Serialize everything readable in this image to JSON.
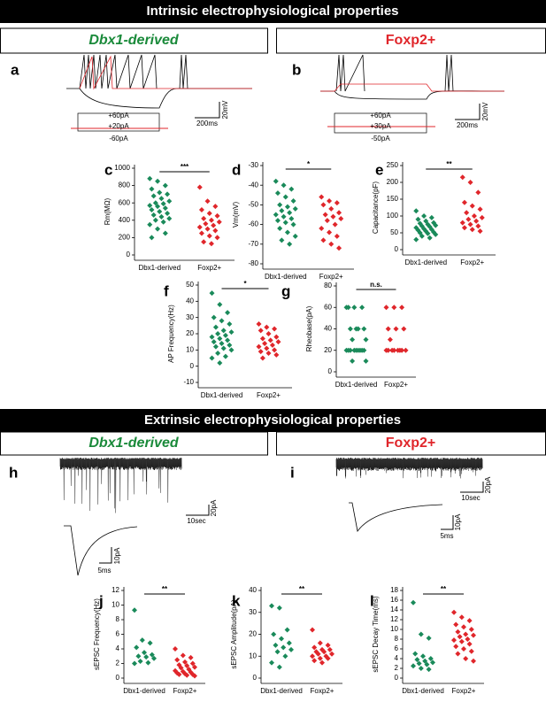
{
  "header": {
    "intrinsic": "Intrinsic electrophysiological properties",
    "extrinsic": "Extrinsic electrophysiological properties"
  },
  "groups": {
    "dbx1": "Dbx1-derived",
    "foxp2": "Foxp2+"
  },
  "traces": {
    "a": {
      "panel": "a",
      "stim": [
        "+60pA",
        "+20pA",
        "-60pA"
      ],
      "time": "200ms",
      "volt": "20mV"
    },
    "b": {
      "panel": "b",
      "stim": [
        "+60pA",
        "+30pA",
        "-50pA"
      ],
      "time": "200ms",
      "volt": "20mV"
    },
    "h": {
      "panel": "h",
      "amp1": "20pA",
      "time1": "10sec",
      "amp2": "10pA",
      "time2": "5ms"
    },
    "i": {
      "panel": "i",
      "amp1": "20pA",
      "time1": "10sec",
      "amp2": "10pA",
      "time2": "5ms"
    }
  },
  "chart_data": [
    {
      "type": "strip",
      "panel": "c",
      "ylabel": "Rm(MΩ)",
      "annotation": "***",
      "categories": [
        "Dbx1-derived",
        "Foxp2+"
      ],
      "ylim": [
        0,
        1000
      ],
      "yticks": [
        0,
        200,
        400,
        600,
        800,
        1000
      ],
      "series": [
        {
          "color": "#1a8a5a",
          "values": [
            880,
            850,
            800,
            760,
            720,
            700,
            680,
            650,
            620,
            600,
            590,
            570,
            560,
            540,
            520,
            500,
            480,
            460,
            440,
            420,
            400,
            380,
            350,
            300,
            250,
            200
          ]
        },
        {
          "color": "#e0262b",
          "values": [
            780,
            620,
            560,
            520,
            480,
            450,
            420,
            400,
            380,
            360,
            340,
            320,
            300,
            280,
            250,
            220,
            200,
            150,
            130
          ]
        }
      ]
    },
    {
      "type": "strip",
      "panel": "d",
      "ylabel": "Vm(mV)",
      "annotation": "*",
      "categories": [
        "Dbx1-derived",
        "Foxp2+"
      ],
      "ylim": [
        -80,
        -30
      ],
      "yticks": [
        -80,
        -70,
        -60,
        -50,
        -40,
        -30
      ],
      "series": [
        {
          "color": "#1a8a5a",
          "values": [
            -38,
            -40,
            -42,
            -44,
            -46,
            -48,
            -50,
            -51,
            -52,
            -53,
            -54,
            -55,
            -56,
            -57,
            -58,
            -59,
            -60,
            -62,
            -64,
            -66,
            -68,
            -70
          ]
        },
        {
          "color": "#e0262b",
          "values": [
            -46,
            -48,
            -49,
            -50,
            -52,
            -54,
            -55,
            -56,
            -57,
            -58,
            -60,
            -62,
            -64,
            -66,
            -68,
            -70,
            -72
          ]
        }
      ]
    },
    {
      "type": "strip",
      "panel": "e",
      "ylabel": "Capacitance(pF)",
      "annotation": "**",
      "categories": [
        "Dbx1-derived",
        "Foxp2+"
      ],
      "ylim": [
        0,
        250
      ],
      "yticks": [
        0,
        50,
        100,
        150,
        200,
        250
      ],
      "series": [
        {
          "color": "#1a8a5a",
          "values": [
            115,
            100,
            95,
            90,
            85,
            80,
            78,
            75,
            72,
            70,
            68,
            65,
            62,
            60,
            58,
            55,
            52,
            50,
            48,
            45,
            40,
            35,
            30
          ]
        },
        {
          "color": "#e0262b",
          "values": [
            215,
            200,
            170,
            140,
            130,
            120,
            110,
            100,
            95,
            90,
            85,
            80,
            75,
            70,
            65,
            60,
            55
          ]
        }
      ]
    },
    {
      "type": "strip",
      "panel": "f",
      "ylabel": "AP Frequency(Hz)",
      "annotation": "*",
      "categories": [
        "Dbx1-derived",
        "Foxp2+"
      ],
      "ylim": [
        -10,
        50
      ],
      "yticks": [
        -10,
        0,
        10,
        20,
        30,
        40,
        50
      ],
      "series": [
        {
          "color": "#1a8a5a",
          "values": [
            45,
            38,
            33,
            30,
            28,
            26,
            24,
            22,
            21,
            20,
            19,
            18,
            17,
            16,
            15,
            14,
            13,
            12,
            11,
            10,
            8,
            6,
            5,
            2
          ]
        },
        {
          "color": "#e0262b",
          "values": [
            26,
            24,
            23,
            22,
            20,
            18,
            17,
            16,
            15,
            14,
            13,
            12,
            11,
            10,
            9,
            8,
            7,
            5
          ]
        }
      ]
    },
    {
      "type": "strip",
      "panel": "g",
      "ylabel": "Rheobase(pA)",
      "annotation": "n.s.",
      "categories": [
        "Dbx1-derived",
        "Foxp2+"
      ],
      "ylim": [
        0,
        80
      ],
      "yticks": [
        0,
        20,
        40,
        60,
        80
      ],
      "series": [
        {
          "color": "#1a8a5a",
          "values": [
            60,
            60,
            60,
            60,
            40,
            40,
            40,
            40,
            30,
            30,
            20,
            20,
            20,
            20,
            20,
            20,
            20,
            20,
            20,
            10,
            10
          ]
        },
        {
          "color": "#e0262b",
          "values": [
            60,
            60,
            60,
            40,
            40,
            40,
            30,
            20,
            20,
            20,
            20,
            20,
            20,
            20,
            20
          ]
        }
      ]
    },
    {
      "type": "strip",
      "panel": "j",
      "ylabel": "sEPSC Frequency(Hz)",
      "annotation": "**",
      "categories": [
        "Dbx1-derived",
        "Foxp2+"
      ],
      "ylim": [
        0,
        12
      ],
      "yticks": [
        0,
        2,
        4,
        6,
        8,
        10,
        12
      ],
      "series": [
        {
          "color": "#1a8a5a",
          "values": [
            9.3,
            5.2,
            4.8,
            4.2,
            3.5,
            3.2,
            3.0,
            2.9,
            2.7,
            2.3,
            2.1,
            2.0
          ]
        },
        {
          "color": "#e0262b",
          "values": [
            4.0,
            3.1,
            2.8,
            2.5,
            2.2,
            2.0,
            1.8,
            1.7,
            1.5,
            1.4,
            1.2,
            1.0,
            0.9,
            0.8,
            0.7,
            0.6,
            0.5,
            0.5,
            0.4,
            0.3
          ]
        }
      ]
    },
    {
      "type": "strip",
      "panel": "k",
      "ylabel": "sEPSC Amplitude(pA)",
      "annotation": "**",
      "categories": [
        "Dbx1-derived",
        "Foxp2+"
      ],
      "ylim": [
        0,
        40
      ],
      "yticks": [
        0,
        10,
        20,
        30,
        40
      ],
      "series": [
        {
          "color": "#1a8a5a",
          "values": [
            33,
            32,
            22,
            20,
            18,
            16,
            15,
            14,
            13,
            12,
            10,
            7,
            5
          ]
        },
        {
          "color": "#e0262b",
          "values": [
            22,
            16,
            15,
            14,
            13,
            13,
            12,
            12,
            11,
            11,
            10,
            10,
            9,
            9,
            8,
            7
          ]
        }
      ]
    },
    {
      "type": "strip",
      "panel": "l",
      "ylabel": "sEPSC Decay Time(ms)",
      "annotation": "**",
      "categories": [
        "Dbx1-derived",
        "Foxp2+"
      ],
      "ylim": [
        0,
        18
      ],
      "yticks": [
        0,
        2,
        4,
        6,
        8,
        10,
        12,
        14,
        16,
        18
      ],
      "series": [
        {
          "color": "#1a8a5a",
          "values": [
            15.5,
            9,
            8.2,
            5,
            4.5,
            4,
            3.8,
            3.5,
            3.2,
            3,
            2.8,
            2.5,
            2,
            1.8
          ]
        },
        {
          "color": "#e0262b",
          "values": [
            13.5,
            12.5,
            11.8,
            11,
            10.5,
            10,
            9.5,
            9,
            8.8,
            8.5,
            8,
            7.8,
            7.5,
            7,
            6.5,
            6,
            5.5,
            5,
            4,
            3.5
          ]
        }
      ]
    }
  ]
}
